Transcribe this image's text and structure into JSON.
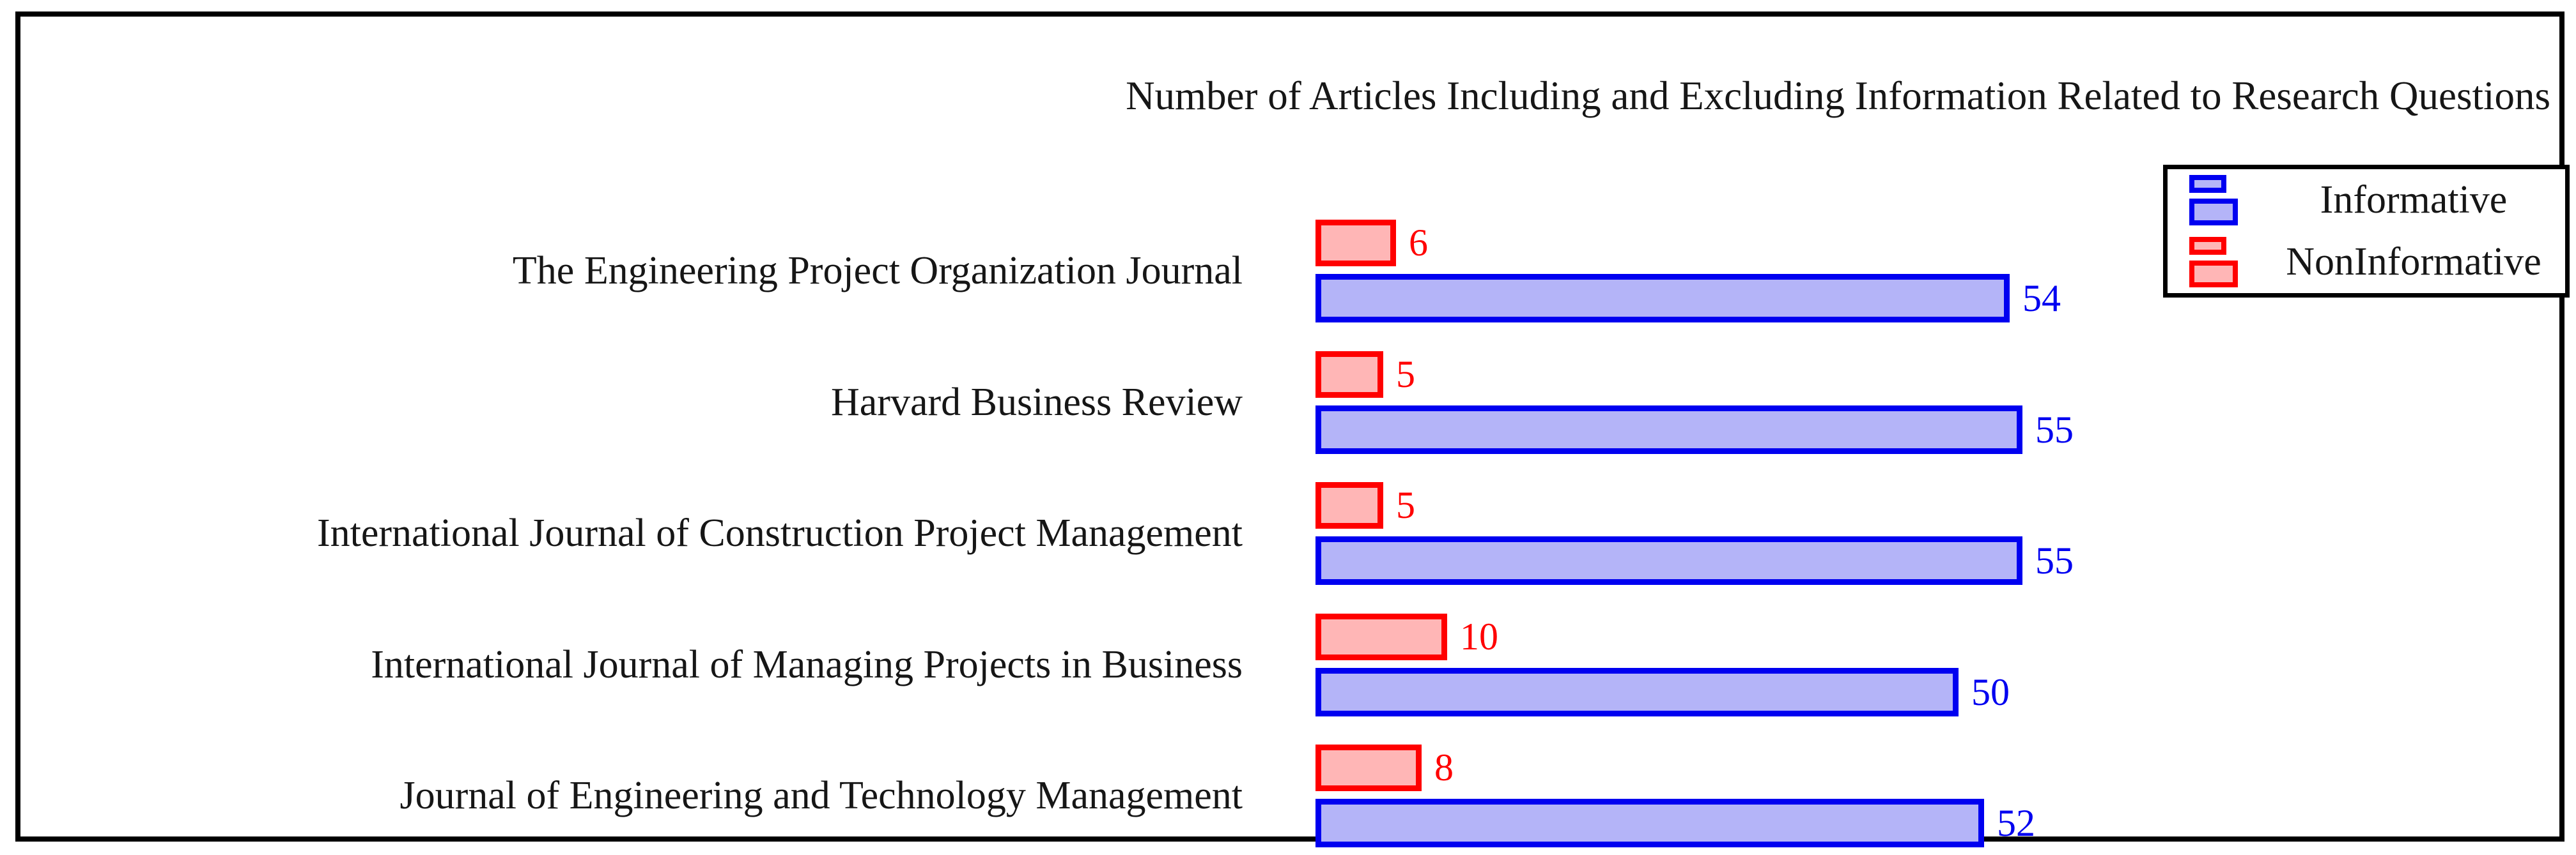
{
  "figure": {
    "legend": {
      "entries": [
        {
          "label": "Informative"
        },
        {
          "label": "NonInformative"
        }
      ]
    }
  },
  "colors": {
    "frame": "#000000",
    "informative_fill": "#b4b4f8",
    "informative_border": "#0000f0",
    "noninformative_fill": "#ffb6b6",
    "noninformative_border": "#ff0000",
    "text": "#161616"
  },
  "chart_data": {
    "type": "bar",
    "orientation": "horizontal",
    "title": "Number of Articles Including and Excluding Information Related to Research Questions",
    "categories": [
      "The Engineering Project Organization Journal",
      "Harvard Business Review",
      "International Journal of Construction Project Management",
      "International Journal of Managing Projects in Business",
      "Journal of Engineering and Technology Management"
    ],
    "series": [
      {
        "name": "Informative",
        "values": [
          54,
          55,
          55,
          50,
          52
        ],
        "fill": "#b4b4f8",
        "border": "#0000f0"
      },
      {
        "name": "NonInformative",
        "values": [
          6,
          5,
          5,
          10,
          8
        ],
        "fill": "#ffb6b6",
        "border": "#ff0000"
      }
    ],
    "value_labels": true,
    "xlim": [
      0,
      60
    ],
    "grid": false,
    "legend_position": "top-right",
    "bar_order_per_category": [
      "NonInformative",
      "Informative"
    ]
  }
}
